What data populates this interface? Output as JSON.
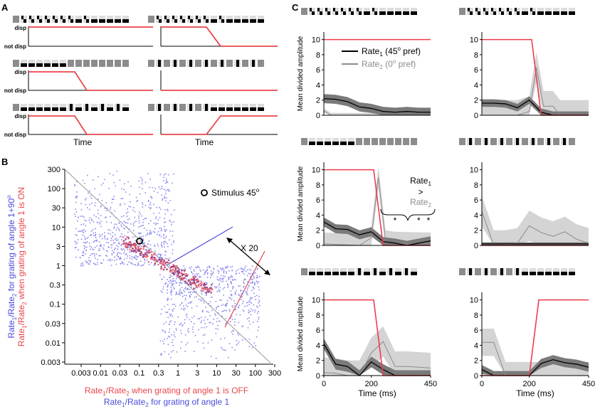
{
  "panels": {
    "a": "A",
    "b": "B",
    "c": "C"
  },
  "panel_a": {
    "disp_label": "disp",
    "not_disp_label": "not disp",
    "xlabel": "Time"
  },
  "panel_b": {
    "legend_label": "Stimulus 45",
    "legend_sup": "o",
    "annotation": "X 20",
    "xlabel_red": "Rate1/Rate2 when grating of angle 1 is OFF",
    "xlabel_blue": "Rate1/Rate2 for grating of angle 1",
    "ylabel_red": "Rate1/Rate2 when grating of angle 1 is ON",
    "ylabel_blue": "Rate1/Rate2 for grating of angle 1+90",
    "ylabel_blue_sup": "o",
    "ticks": [
      "0.003",
      "0.01",
      "0.03",
      "0.1",
      "0.3",
      "1",
      "3",
      "10",
      "30",
      "100",
      "300"
    ],
    "colors": {
      "blue": "#4b4bdc",
      "red": "#e8454b",
      "dots": "#8a8af0",
      "pink": "#ee6470",
      "purple": "#9a3a78"
    }
  },
  "panel_c": {
    "ylabel": "Mean divided amplitude",
    "xlabel": "Time (ms)",
    "yticks": [
      "0",
      "2",
      "4",
      "6",
      "8",
      "10"
    ],
    "xticks": [
      "0",
      "200",
      "450"
    ],
    "legend": {
      "rate1": "Rate",
      "rate1_sub": "1",
      "rate1_pref": " (45",
      "rate1_pref_sup": "o",
      "rate1_pref_end": " pref)",
      "rate2": "Rate",
      "rate2_sub": "2",
      "rate2_pref": " (0",
      "rate2_pref_sup": "o",
      "rate2_pref_end": " pref)"
    },
    "annotation": {
      "rate1": "Rate",
      "sub1": "1",
      "gt": ">",
      "rate2": "Rate",
      "sub2": "2",
      "stars": "*"
    }
  }
}
